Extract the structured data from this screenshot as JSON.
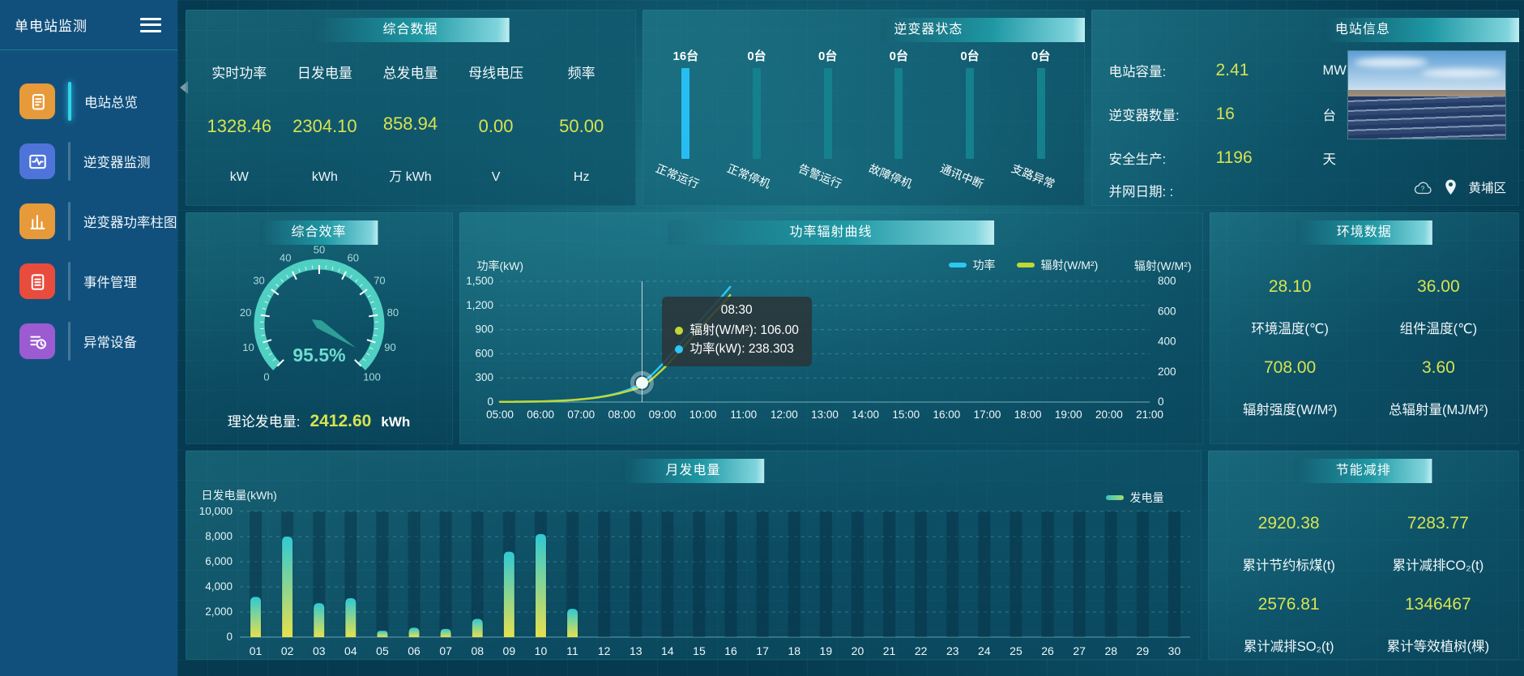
{
  "sidebar": {
    "title": "单电站监测",
    "items": [
      {
        "label": "电站总览",
        "icon": "overview-doc-icon",
        "icon_color": "#e79a3a",
        "active": true
      },
      {
        "label": "逆变器监测",
        "icon": "inverter-monitor-icon",
        "icon_color": "#4f74d9",
        "active": false
      },
      {
        "label": "逆变器功率柱图",
        "icon": "power-bars-icon",
        "icon_color": "#e79a3a",
        "active": false
      },
      {
        "label": "事件管理",
        "icon": "event-clipboard-icon",
        "icon_color": "#e84c3d",
        "active": false
      },
      {
        "label": "异常设备",
        "icon": "abnormal-list-icon",
        "icon_color": "#9d5bd2",
        "active": false
      }
    ]
  },
  "overview": {
    "title": "综合数据",
    "metrics": [
      {
        "label": "实时功率",
        "value": "1328.46",
        "unit": "kW"
      },
      {
        "label": "日发电量",
        "value": "2304.10",
        "unit": "kWh"
      },
      {
        "label": "总发电量",
        "value": "858.94",
        "unit": "万 kWh"
      },
      {
        "label": "母线电压",
        "value": "0.00",
        "unit": "V"
      },
      {
        "label": "频率",
        "value": "50.00",
        "unit": "Hz"
      }
    ]
  },
  "inverter_status": {
    "title": "逆变器状态",
    "items": [
      {
        "count": "16台",
        "label": "正常运行",
        "highlight": true
      },
      {
        "count": "0台",
        "label": "正常停机",
        "highlight": false
      },
      {
        "count": "0台",
        "label": "告警运行",
        "highlight": false
      },
      {
        "count": "0台",
        "label": "故障停机",
        "highlight": false
      },
      {
        "count": "0台",
        "label": "通讯中断",
        "highlight": false
      },
      {
        "count": "0台",
        "label": "支路异常",
        "highlight": false
      }
    ]
  },
  "station_info": {
    "title": "电站信息",
    "rows": [
      {
        "label": "电站容量:",
        "value": "2.41",
        "unit": "MW"
      },
      {
        "label": "逆变器数量:",
        "value": "16",
        "unit": "台"
      },
      {
        "label": "安全生产:",
        "value": "1196",
        "unit": "天"
      },
      {
        "label": "并网日期: :",
        "value": "",
        "unit": ""
      }
    ],
    "location": "黄埔区"
  },
  "efficiency": {
    "theory_label": "理论发电量:",
    "theory_value": "2412.60",
    "theory_unit": "kWh"
  },
  "environment": {
    "title": "环境数据",
    "metrics": [
      {
        "value": "28.10",
        "label": "环境温度(℃)"
      },
      {
        "value": "36.00",
        "label": "组件温度(℃)"
      },
      {
        "value": "708.00",
        "label": "辐射强度(W/M²)"
      },
      {
        "value": "3.60",
        "label": "总辐射量(MJ/M²)"
      }
    ]
  },
  "energy_saving": {
    "title": "节能减排",
    "metrics": [
      {
        "value": "2920.38",
        "label": "累计节约标煤(t)"
      },
      {
        "value": "7283.77",
        "label": "累计减排CO₂(t)"
      },
      {
        "value": "2576.81",
        "label": "累计减排SO₂(t)"
      },
      {
        "value": "1346467",
        "label": "累计等效植树(棵)"
      }
    ]
  },
  "colors": {
    "accent_yellow": "#d7e34f",
    "power_line": "#2cc7f2",
    "radiation_line": "#c3d832",
    "status_active_bar": "#27bdf2",
    "status_idle_bar": "#14818c",
    "bar_gradient_top": "#2fc9d4",
    "bar_gradient_bottom": "#e6e14d",
    "gauge_ring": "#4fd0c2"
  },
  "chart_data": [
    {
      "id": "efficiency-gauge",
      "type": "gauge",
      "title": "综合效率",
      "value": 95.5,
      "label": "95.5%",
      "min": 0,
      "max": 100,
      "tick_step": 10
    },
    {
      "id": "power-radiation",
      "type": "line",
      "title": "功率辐射曲线",
      "x": [
        5,
        5.5,
        6,
        6.5,
        7,
        7.5,
        8,
        8.5,
        9,
        9.5,
        10,
        10.25,
        10.5,
        10.67
      ],
      "x_labels": [
        "05:00",
        "06:00",
        "07:00",
        "08:00",
        "09:00",
        "10:00",
        "11:00",
        "12:00",
        "13:00",
        "14:00",
        "15:00",
        "16:00",
        "17:00",
        "18:00",
        "19:00",
        "20:00",
        "21:00"
      ],
      "x_range": [
        5,
        21
      ],
      "series": [
        {
          "name": "功率",
          "color": "#2cc7f2",
          "axis": "left",
          "values": [
            2,
            4,
            8,
            16,
            34,
            66,
            125,
            238.3,
            470,
            760,
            1050,
            1190,
            1330,
            1430
          ]
        },
        {
          "name": "辐射(W/M²)",
          "color": "#c3d832",
          "axis": "right",
          "values": [
            1,
            2,
            4,
            9,
            18,
            34,
            62,
            106,
            215,
            360,
            510,
            585,
            655,
            708
          ]
        }
      ],
      "left_axis": {
        "name": "功率(kW)",
        "min": 0,
        "max": 1500,
        "step": 300
      },
      "right_axis": {
        "name": "辐射(W/M²)",
        "min": 0,
        "max": 800,
        "step": 200
      },
      "highlight": {
        "x": 8.5,
        "tooltip_title": "08:30",
        "items": [
          {
            "color": "#c3d832",
            "text": "辐射(W/M²): 106.00"
          },
          {
            "color": "#2cc7f2",
            "text": "功率(kW): 238.303"
          }
        ]
      }
    },
    {
      "id": "monthly-generation",
      "type": "bar",
      "title": "月发电量",
      "ylabel": "日发电量(kWh)",
      "legend": "发电量",
      "categories": [
        "01",
        "02",
        "03",
        "04",
        "05",
        "06",
        "07",
        "08",
        "09",
        "10",
        "11",
        "12",
        "13",
        "14",
        "15",
        "16",
        "17",
        "18",
        "19",
        "20",
        "21",
        "22",
        "23",
        "24",
        "25",
        "26",
        "27",
        "28",
        "29",
        "30"
      ],
      "values": [
        3200,
        8000,
        2700,
        3100,
        500,
        750,
        650,
        1450,
        6800,
        8200,
        2250,
        0,
        0,
        0,
        0,
        0,
        0,
        0,
        0,
        0,
        0,
        0,
        0,
        0,
        0,
        0,
        0,
        0,
        0,
        0
      ],
      "ylim": [
        0,
        10000
      ],
      "step": 2000
    }
  ]
}
